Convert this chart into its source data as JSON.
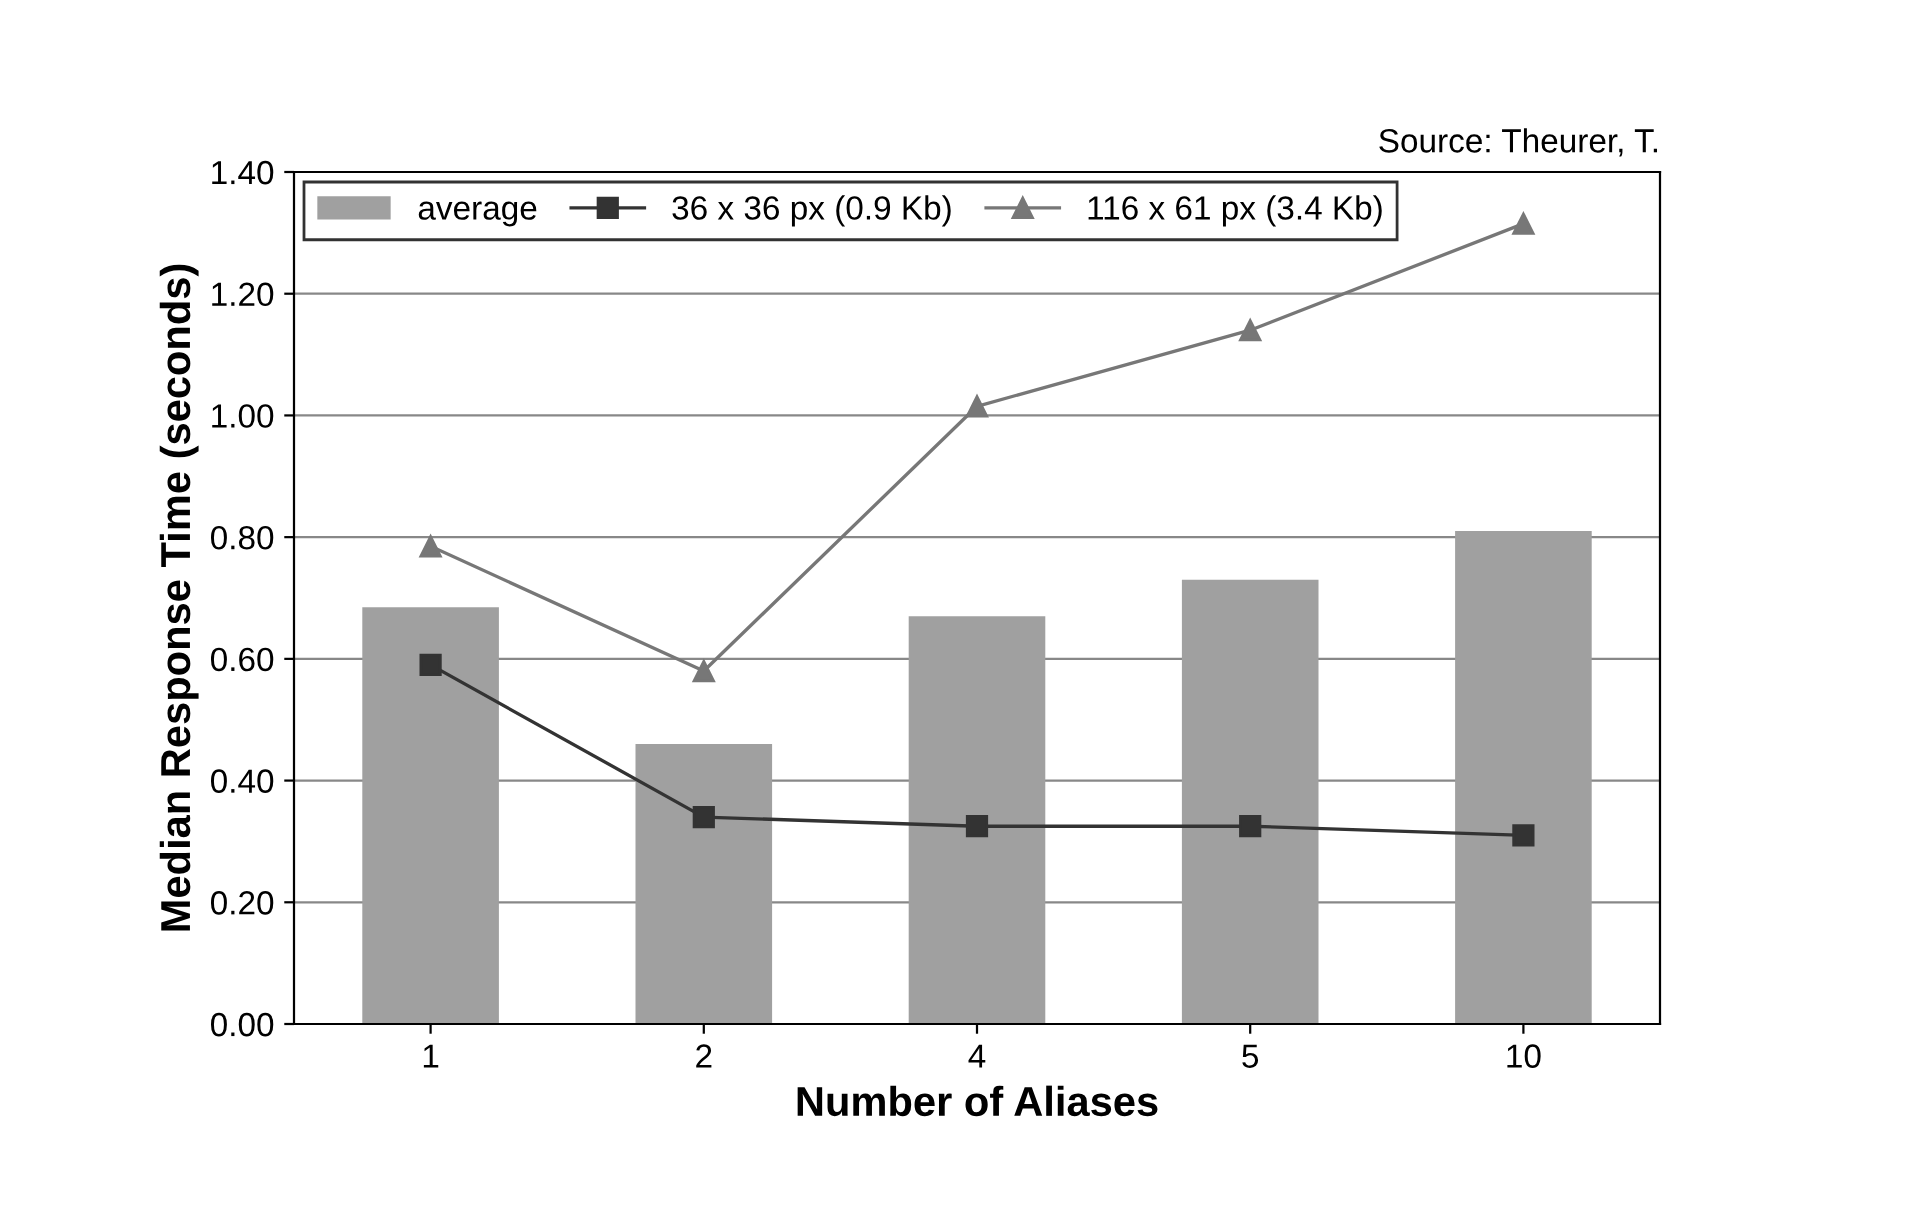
{
  "chart_data": {
    "type": "bar",
    "xlabel": "Number of Aliases",
    "ylabel": "Median Response Time (seconds)",
    "annotations": [
      "Source: Theurer, T."
    ],
    "categories": [
      "1",
      "2",
      "4",
      "5",
      "10"
    ],
    "series": [
      {
        "name": "average",
        "color": "#a0a0a0",
        "values": [
          0.685,
          0.46,
          0.67,
          0.73,
          0.81
        ]
      },
      {
        "name": "36 x 36 px (0.9 Kb)",
        "type": "line",
        "marker": "square",
        "color": "#333333",
        "values": [
          0.59,
          0.34,
          0.325,
          0.325,
          0.31
        ]
      },
      {
        "name": "116 x 61 px (3.4 Kb)",
        "type": "line",
        "marker": "triangle",
        "color": "#777777",
        "values": [
          0.785,
          0.58,
          1.015,
          1.14,
          1.315
        ]
      }
    ],
    "ylim": [
      0,
      1.4
    ],
    "yticks": [
      {
        "value": 0,
        "label": "0.00"
      },
      {
        "value": 0.2,
        "label": "0.20"
      },
      {
        "value": 0.4,
        "label": "0.40"
      },
      {
        "value": 0.6,
        "label": "0.60"
      },
      {
        "value": 0.8,
        "label": "0.80"
      },
      {
        "value": 1.0,
        "label": "1.00"
      },
      {
        "value": 1.2,
        "label": "1.20"
      },
      {
        "value": 1.4,
        "label": "1.40"
      }
    ],
    "grid": "y",
    "legend": "top left"
  }
}
